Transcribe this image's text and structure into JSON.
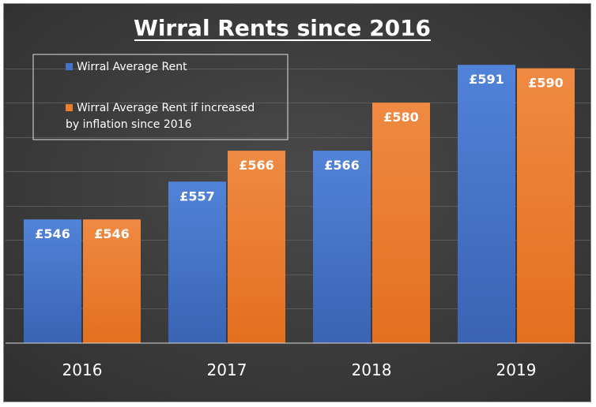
{
  "chart_data": {
    "type": "bar",
    "title": "Wirral Rents since 2016",
    "categories": [
      "2016",
      "2017",
      "2018",
      "2019"
    ],
    "series": [
      {
        "name": "Wirral Average Rent",
        "values": [
          546,
          557,
          566,
          591
        ],
        "labels": [
          "£546",
          "£557",
          "£566",
          "£591"
        ],
        "color": "#4472c4"
      },
      {
        "name": "Wirral  Average Rent if increased by inflation since 2016",
        "name_lines": [
          "Wirral  Average Rent if increased",
          "by inflation since 2016"
        ],
        "values": [
          546,
          566,
          580,
          590
        ],
        "labels": [
          "£546",
          "£566",
          "£580",
          "£590"
        ],
        "color": "#ed7d31"
      }
    ],
    "xlabel": "",
    "ylabel": "",
    "ylim": [
      510,
      600
    ],
    "grid": true,
    "legend_position": "top-left",
    "colors": {
      "background": "#404040",
      "gridline": "#5a5a5a",
      "axis": "#d9d9d9",
      "text": "#ffffff"
    }
  }
}
